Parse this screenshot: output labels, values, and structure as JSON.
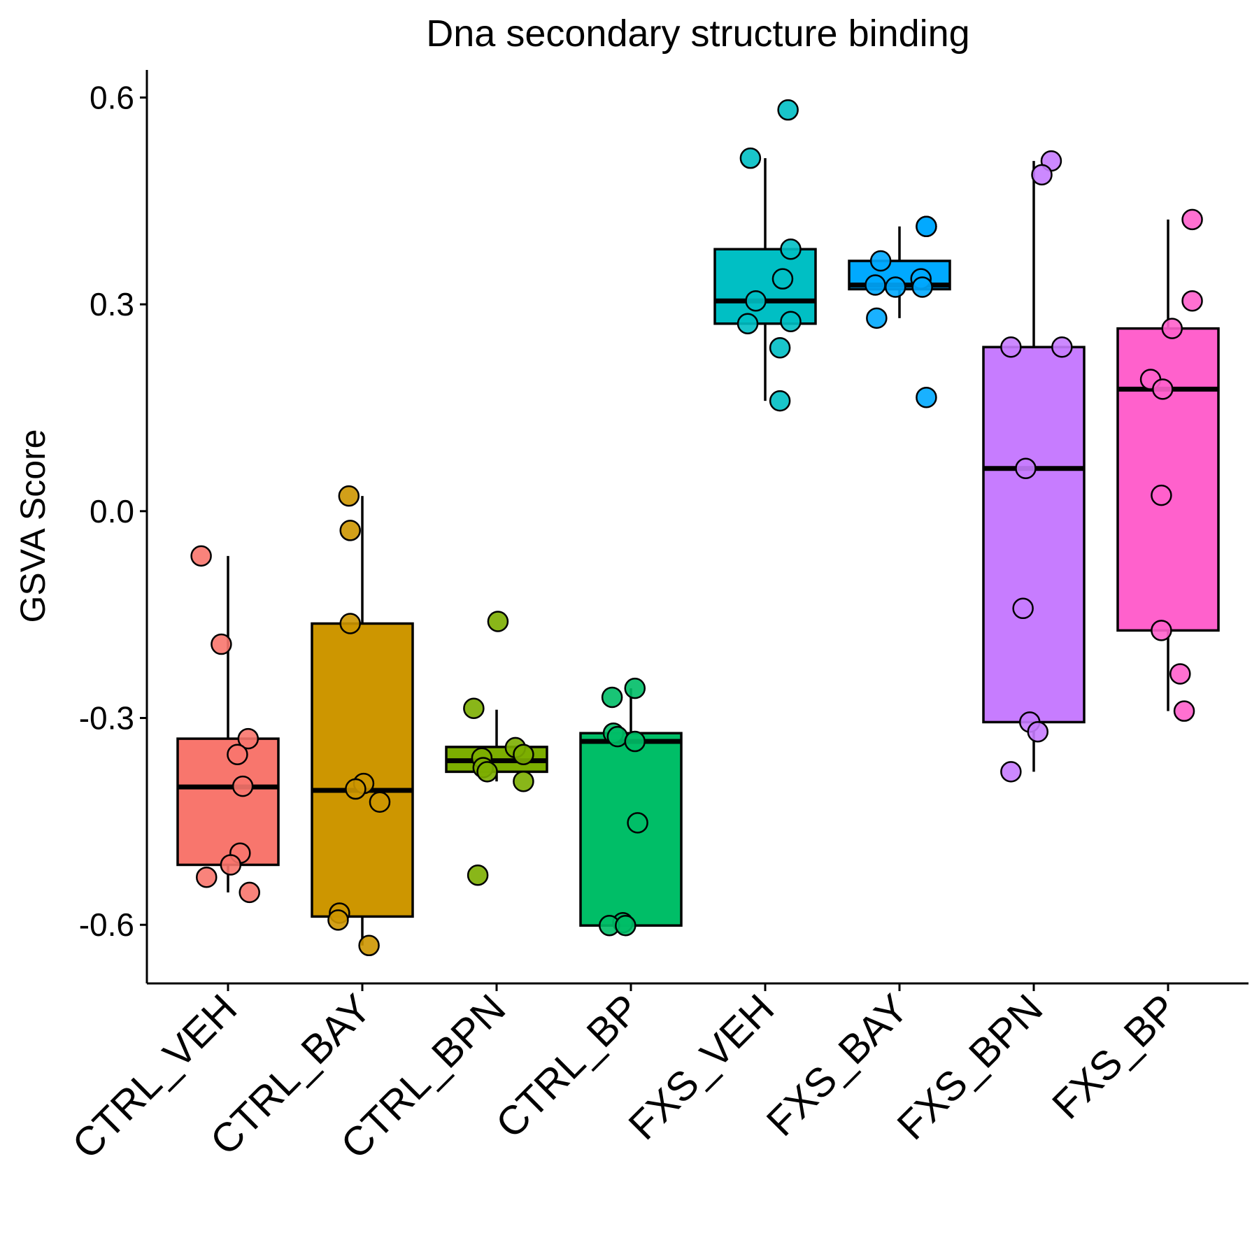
{
  "chart_data": {
    "type": "box",
    "title": "Dna secondary structure binding",
    "xlabel": "",
    "ylabel": "GSVA Score",
    "ylim": [
      -0.685,
      0.64
    ],
    "yticks": [
      "0.6",
      "0.3",
      "0.0",
      "-0.3",
      "-0.6"
    ],
    "ytick_values": [
      0.6,
      0.3,
      0.0,
      -0.3,
      -0.6
    ],
    "grid": false,
    "legend": "none",
    "categories": [
      "CTRL_VEH",
      "CTRL_BAY",
      "CTRL_BPN",
      "CTRL_BP",
      "FXS_VEH",
      "FXS_BAY",
      "FXS_BPN",
      "FXS_BP"
    ],
    "colors": [
      "#F8766D",
      "#CD9600",
      "#7CAE00",
      "#00BE67",
      "#00BFC4",
      "#00A9FF",
      "#C77CFF",
      "#FF61CC"
    ],
    "boxes": [
      {
        "q1": -0.513,
        "median": -0.4,
        "q3": -0.33,
        "whisker_low": -0.553,
        "whisker_high": -0.065
      },
      {
        "q1": -0.588,
        "median": -0.405,
        "q3": -0.163,
        "whisker_low": -0.63,
        "whisker_high": 0.022
      },
      {
        "q1": -0.378,
        "median": -0.362,
        "q3": -0.342,
        "whisker_low": -0.392,
        "whisker_high": -0.288
      },
      {
        "q1": -0.601,
        "median": -0.334,
        "q3": -0.322,
        "whisker_low": -0.601,
        "whisker_high": -0.257
      },
      {
        "q1": 0.272,
        "median": 0.305,
        "q3": 0.38,
        "whisker_low": 0.16,
        "whisker_high": 0.512
      },
      {
        "q1": 0.322,
        "median": 0.328,
        "q3": 0.363,
        "whisker_low": 0.28,
        "whisker_high": 0.413
      },
      {
        "q1": -0.306,
        "median": 0.062,
        "q3": 0.238,
        "whisker_low": -0.378,
        "whisker_high": 0.508
      },
      {
        "q1": -0.173,
        "median": 0.177,
        "q3": 0.265,
        "whisker_low": -0.29,
        "whisker_high": 0.423
      }
    ],
    "points": [
      [
        [
          -0.2,
          -0.065
        ],
        [
          -0.05,
          -0.193
        ],
        [
          0.15,
          -0.33
        ],
        [
          0.07,
          -0.353
        ],
        [
          0.11,
          -0.399
        ],
        [
          0.09,
          -0.496
        ],
        [
          0.02,
          -0.513
        ],
        [
          -0.16,
          -0.531
        ],
        [
          0.16,
          -0.553
        ]
      ],
      [
        [
          -0.1,
          0.022
        ],
        [
          -0.09,
          -0.028
        ],
        [
          -0.09,
          -0.163
        ],
        [
          0.01,
          -0.395
        ],
        [
          -0.05,
          -0.403
        ],
        [
          0.13,
          -0.422
        ],
        [
          -0.17,
          -0.583
        ],
        [
          -0.18,
          -0.593
        ],
        [
          0.05,
          -0.63
        ]
      ],
      [
        [
          0.01,
          -0.16
        ],
        [
          -0.17,
          -0.286
        ],
        [
          0.14,
          -0.343
        ],
        [
          -0.11,
          -0.358
        ],
        [
          0.2,
          -0.353
        ],
        [
          -0.1,
          -0.372
        ],
        [
          -0.07,
          -0.378
        ],
        [
          0.2,
          -0.392
        ],
        [
          -0.14,
          -0.528
        ]
      ],
      [
        [
          -0.14,
          -0.27
        ],
        [
          0.03,
          -0.257
        ],
        [
          -0.13,
          -0.322
        ],
        [
          -0.1,
          -0.327
        ],
        [
          0.03,
          -0.334
        ],
        [
          0.05,
          -0.452
        ],
        [
          -0.06,
          -0.597
        ],
        [
          -0.16,
          -0.601
        ],
        [
          -0.04,
          -0.601
        ]
      ],
      [
        [
          0.17,
          0.582
        ],
        [
          -0.11,
          0.512
        ],
        [
          0.19,
          0.38
        ],
        [
          0.13,
          0.337
        ],
        [
          -0.07,
          0.305
        ],
        [
          -0.13,
          0.272
        ],
        [
          0.19,
          0.275
        ],
        [
          0.11,
          0.237
        ],
        [
          0.11,
          0.16
        ]
      ],
      [
        [
          0.2,
          0.413
        ],
        [
          -0.14,
          0.363
        ],
        [
          -0.18,
          0.328
        ],
        [
          -0.03,
          0.325
        ],
        [
          0.16,
          0.337
        ],
        [
          0.17,
          0.325
        ],
        [
          -0.17,
          0.28
        ],
        [
          0.2,
          0.165
        ],
        [
          0.2,
          0.413
        ]
      ],
      [
        [
          0.13,
          0.508
        ],
        [
          0.06,
          0.488
        ],
        [
          -0.17,
          0.238
        ],
        [
          0.21,
          0.238
        ],
        [
          -0.06,
          0.062
        ],
        [
          -0.08,
          -0.141
        ],
        [
          -0.03,
          -0.306
        ],
        [
          0.03,
          -0.32
        ],
        [
          -0.17,
          -0.378
        ]
      ],
      [
        [
          0.18,
          0.423
        ],
        [
          0.18,
          0.305
        ],
        [
          0.03,
          0.265
        ],
        [
          -0.13,
          0.191
        ],
        [
          -0.04,
          0.177
        ],
        [
          -0.05,
          0.023
        ],
        [
          -0.05,
          -0.173
        ],
        [
          0.09,
          -0.236
        ],
        [
          0.12,
          -0.29
        ]
      ]
    ]
  }
}
